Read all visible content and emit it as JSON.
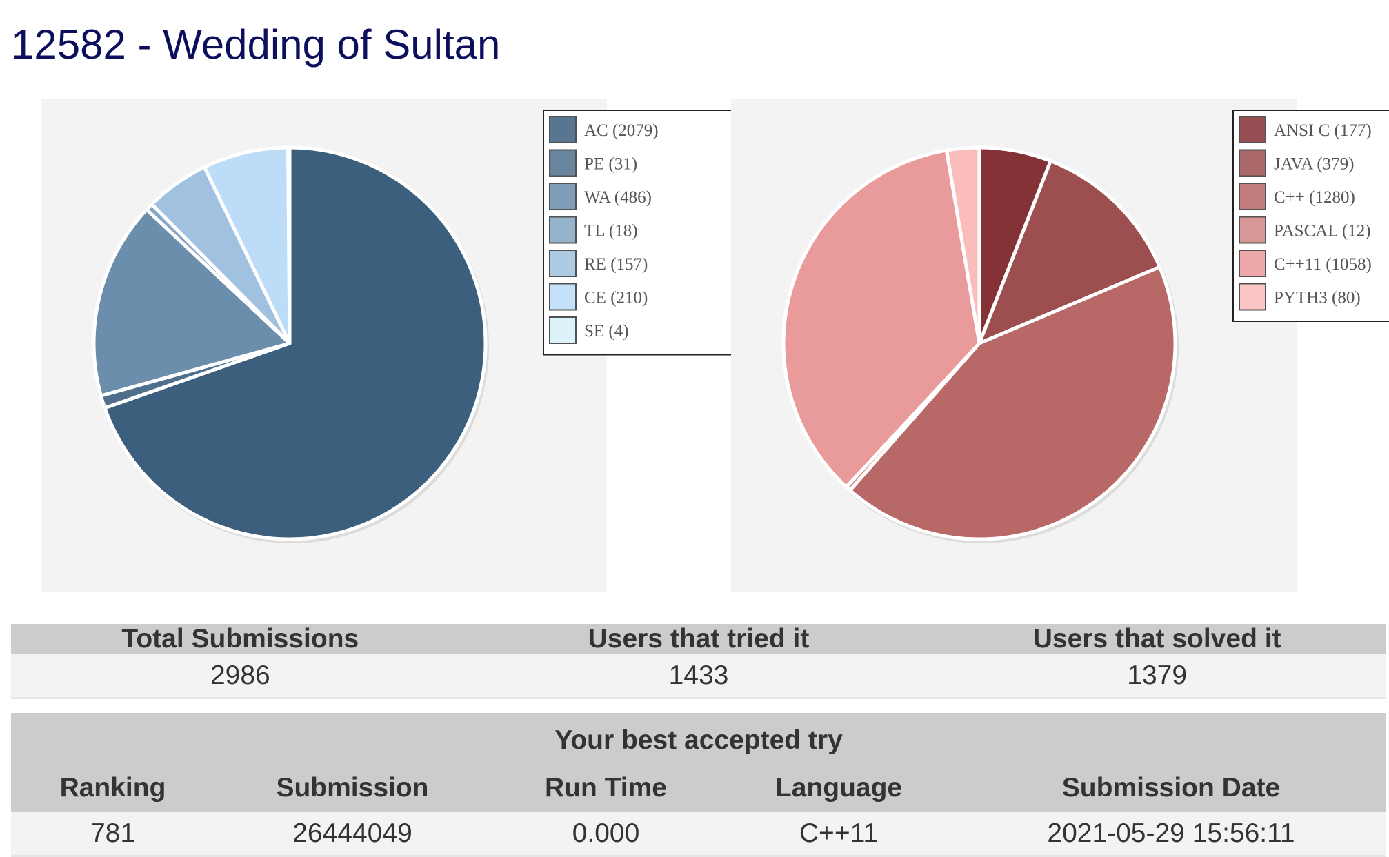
{
  "page": {
    "title": "12582 - Wedding of Sultan"
  },
  "chart_data": [
    {
      "type": "pie",
      "slices": [
        {
          "label": "AC",
          "value": 2079,
          "color": "#3b5f7d"
        },
        {
          "label": "PE",
          "value": 31,
          "color": "#4f6f8c"
        },
        {
          "label": "WA",
          "value": 486,
          "color": "#6b8eac"
        },
        {
          "label": "TL",
          "value": 18,
          "color": "#84a6c4"
        },
        {
          "label": "RE",
          "value": 157,
          "color": "#a0c2e0"
        },
        {
          "label": "CE",
          "value": 210,
          "color": "#bcdcf8"
        },
        {
          "label": "SE",
          "value": 4,
          "color": "#d6f0fb"
        }
      ],
      "legend": [
        "AC (2079)",
        "PE (31)",
        "WA (486)",
        "TL (18)",
        "RE (157)",
        "CE (210)",
        "SE (4)"
      ],
      "legend_placement": "top-right"
    },
    {
      "type": "pie",
      "slices": [
        {
          "label": "ANSI C",
          "value": 177,
          "color": "#843236"
        },
        {
          "label": "JAVA",
          "value": 379,
          "color": "#9d4e4f"
        },
        {
          "label": "C++",
          "value": 1280,
          "color": "#b76867"
        },
        {
          "label": "PASCAL",
          "value": 12,
          "color": "#d18685"
        },
        {
          "label": "C++11",
          "value": 1058,
          "color": "#e99a9a"
        },
        {
          "label": "PYTH3",
          "value": 80,
          "color": "#fbbcbc"
        }
      ],
      "legend": [
        "ANSI C (177)",
        "JAVA (379)",
        "C++ (1280)",
        "PASCAL (12)",
        "C++11 (1058)",
        "PYTH3 (80)"
      ],
      "legend_placement": "top-right"
    }
  ],
  "stats": {
    "headers": [
      "Total Submissions",
      "Users that tried it",
      "Users that solved it"
    ],
    "values": [
      "2986",
      "1433",
      "1379"
    ]
  },
  "best_try": {
    "caption": "Your best accepted try",
    "headers": [
      "Ranking",
      "Submission",
      "Run Time",
      "Language",
      "Submission Date"
    ],
    "values": [
      "781",
      "26444049",
      "0.000",
      "C++11",
      "2021-05-29 15:56:11"
    ]
  }
}
